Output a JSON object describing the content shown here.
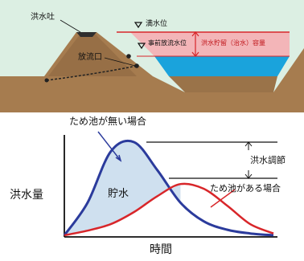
{
  "dam": {
    "spillway_label": "洪水吐",
    "flood_level_label": "満水位",
    "pre_discharge_level_label": "事前放流水位",
    "outlet_label": "放流口",
    "storage_label": "洪水貯留（治水）容量"
  },
  "graph": {
    "no_pond_label": "ため池が無い場合",
    "with_pond_label": "ため池がある場合",
    "storage_label": "貯水",
    "regulation_label": "洪水調節",
    "ylabel": "洪水量",
    "xlabel": "時間"
  },
  "colors": {
    "no_pond_curve": "#2b3b9c",
    "with_pond_curve": "#d8262a",
    "storage_fill": "#cfe0ef",
    "water": "#1aa3dc",
    "flood_storage": "#f3b5b8",
    "soil": "#a67c4f"
  },
  "chart_data": {
    "type": "line",
    "title": "",
    "xlabel": "時間",
    "ylabel": "洪水量",
    "series": [
      {
        "name": "ため池が無い場合",
        "values": [
          0,
          0.35,
          0.9,
          1.0,
          0.7,
          0.35,
          0.15,
          0.06,
          0.02,
          0
        ]
      },
      {
        "name": "ため池がある場合",
        "values": [
          0,
          0.05,
          0.12,
          0.25,
          0.42,
          0.55,
          0.5,
          0.32,
          0.12,
          0.02
        ]
      }
    ],
    "annotations": [
      "貯水",
      "洪水調節"
    ],
    "grid": false
  }
}
